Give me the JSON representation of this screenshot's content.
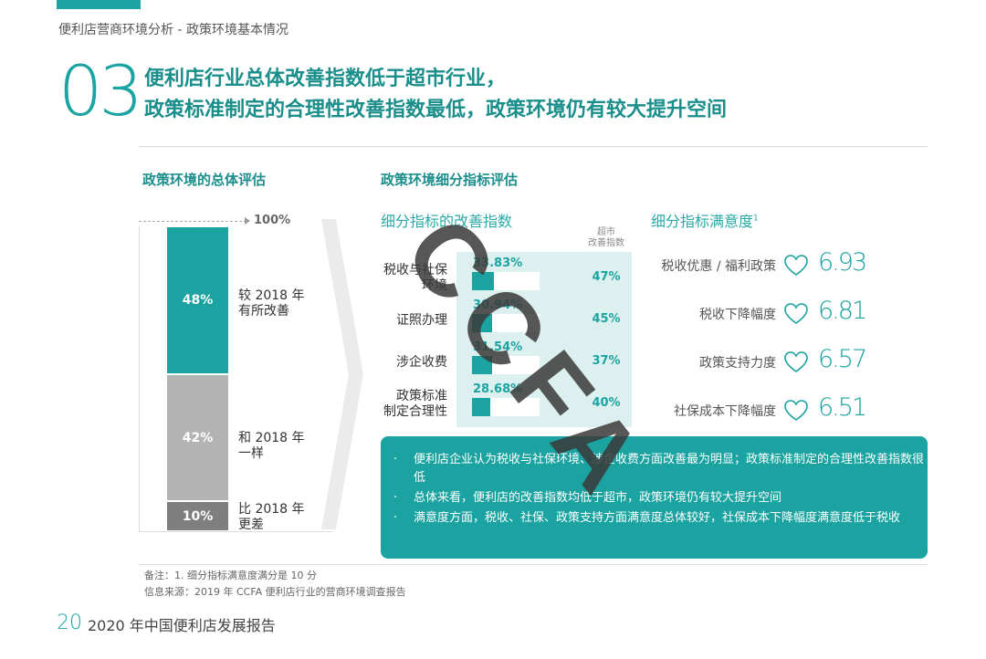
{
  "header": {
    "breadcrumb": "便利店营商环境分析 - 政策环境基本情况",
    "section_number": "03",
    "headline_line1": "便利店行业总体改善指数低于超市行业，",
    "headline_line2": "政策标准制定的合理性改善指数最低，政策环境仍有较大提升空间"
  },
  "left_panel": {
    "title": "政策环境的总体评估",
    "top_marker": "100%"
  },
  "right_panel": {
    "title": "政策环境细分指标评估",
    "sub_left": "细分指标的改善指数",
    "sub_right": "细分指标满意度",
    "sub_right_sup": "1",
    "supermarket_header_line1": "超市",
    "supermarket_header_line2": "改善指数"
  },
  "chart_data": [
    {
      "type": "bar",
      "stacked": true,
      "title": "政策环境的总体评估",
      "ylim": [
        0,
        100
      ],
      "series": [
        {
          "name": "比 2018 年 更差",
          "value": 10,
          "label": "10%",
          "color": "#7f7f7f"
        },
        {
          "name": "和 2018 年 一样",
          "value": 42,
          "label": "42%",
          "color": "#b3b3b3"
        },
        {
          "name": "较 2018 年 有所改善",
          "value": 48,
          "label": "48%",
          "color": "#1aa3a0"
        }
      ],
      "segment_labels": [
        [
          "比 2018 年",
          "更差"
        ],
        [
          "和 2018 年",
          "一样"
        ],
        [
          "较 2018 年",
          "有所改善"
        ]
      ]
    },
    {
      "type": "bar",
      "orientation": "horizontal",
      "title": "细分指标的改善指数",
      "categories": [
        [
          "税收与社保",
          "环境"
        ],
        [
          "证照办理"
        ],
        [
          "涉企收费"
        ],
        [
          "政策标准",
          "制定合理性"
        ]
      ],
      "series": [
        {
          "name": "便利店",
          "values": [
            33.83,
            30.94,
            31.54,
            28.68
          ],
          "labels": [
            "33.83%",
            "30.94%",
            "31.54%",
            "28.68%"
          ]
        },
        {
          "name": "超市 改善指数",
          "values": [
            47,
            45,
            37,
            40
          ],
          "labels": [
            "47%",
            "45%",
            "37%",
            "40%"
          ]
        }
      ],
      "xlim": [
        0,
        100
      ]
    },
    {
      "type": "table",
      "title": "细分指标满意度",
      "rows": [
        {
          "label": "税收优惠 / 福利政策",
          "score": "6.93"
        },
        {
          "label": "税收下降幅度",
          "score": "6.81"
        },
        {
          "label": "政策支持力度",
          "score": "6.57"
        },
        {
          "label": "社保成本下降幅度",
          "score": "6.51"
        }
      ]
    }
  ],
  "notes": [
    "便利店企业认为税收与社保环境、涉企收费方面改善最为明显；政策标准制定的合理性改善指数很低",
    "总体来看，便利店的改善指数均低于超市，政策环境仍有较大提升空间",
    "满意度方面，税收、社保、政策支持方面满意度总体较好，社保成本下降幅度满意度低于税收"
  ],
  "note_bullet": "·",
  "footnotes": {
    "remark": "备注：1. 细分指标满意度满分是 10 分",
    "source": "信息来源：2019 年 CCFA 便利店行业的营商环境调查报告"
  },
  "footer": {
    "page_number": "20",
    "report_title": "2020 年中国便利店发展报告"
  },
  "watermark_text": "CCFA",
  "colors": {
    "accent": "#1aa3a0",
    "gray_mid": "#b3b3b3",
    "gray_dark": "#7f7f7f"
  }
}
